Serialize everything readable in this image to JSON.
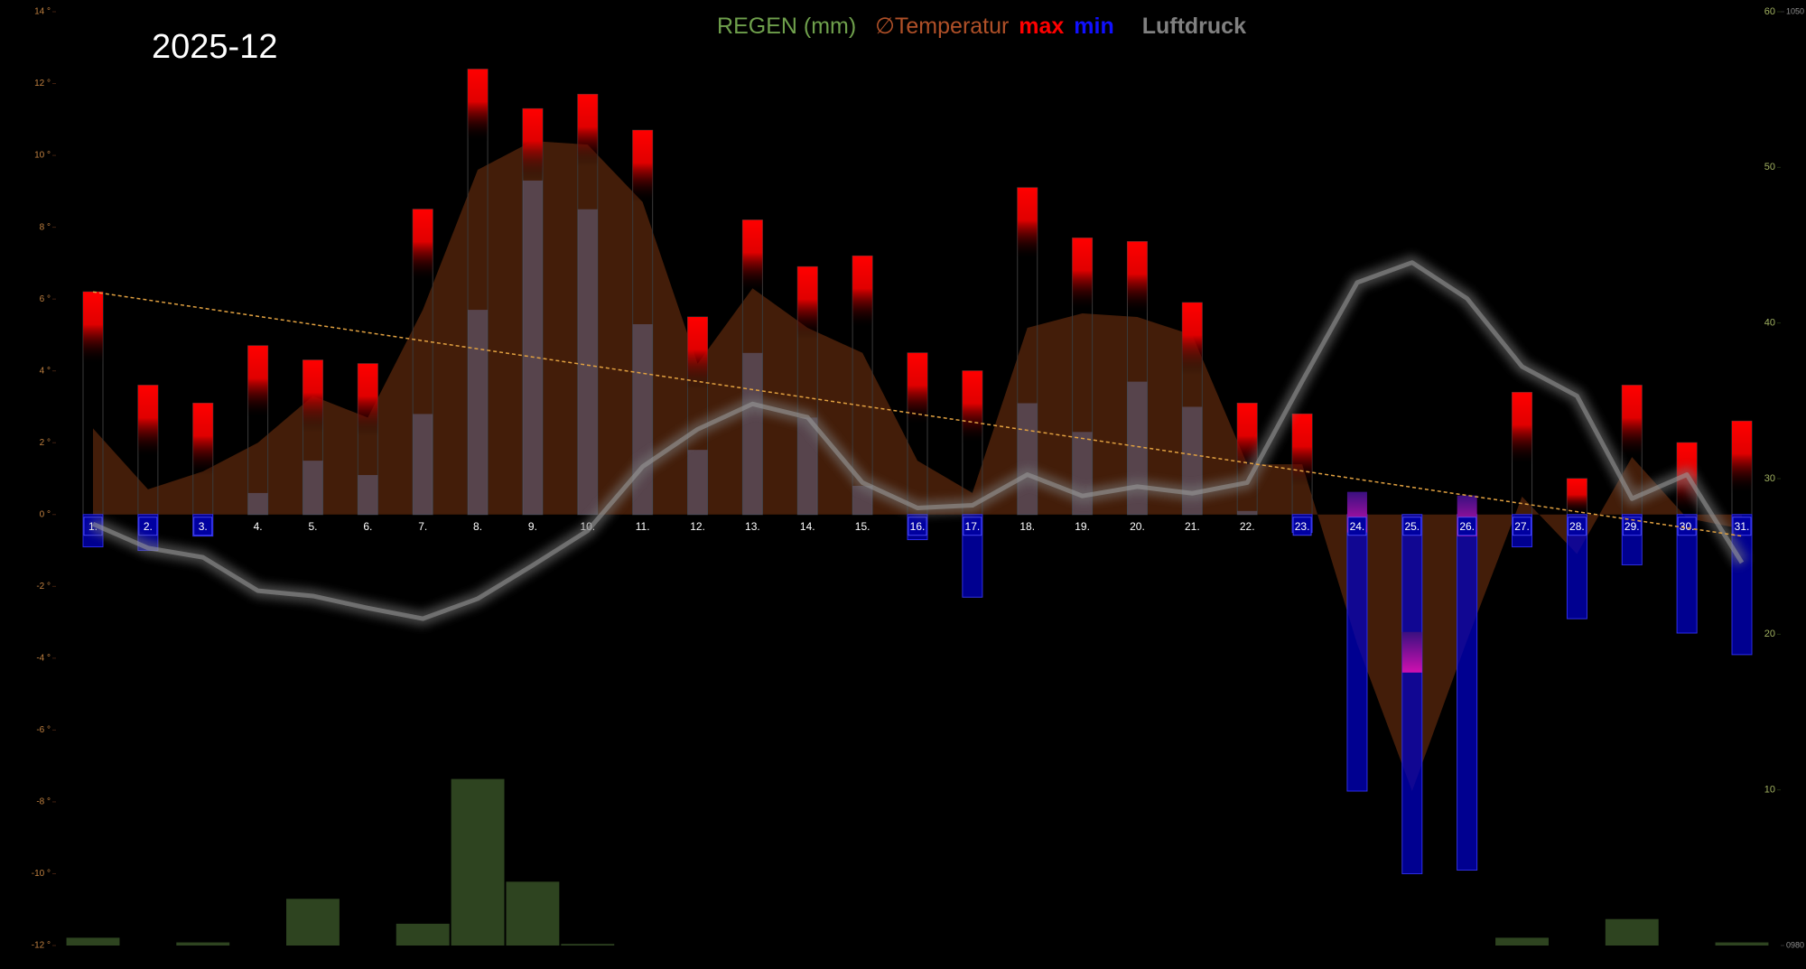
{
  "chart_data": {
    "type": "weather",
    "title": "2025-12",
    "legend": {
      "rain": "REGEN (mm)",
      "temp": "∅Temperatur",
      "max": "max",
      "min": "min",
      "pressure": "Luftdruck"
    },
    "categories": [
      "1.",
      "2.",
      "3.",
      "4.",
      "5.",
      "6.",
      "7.",
      "8.",
      "9.",
      "10.",
      "11.",
      "12.",
      "13.",
      "14.",
      "15.",
      "16.",
      "17.",
      "18.",
      "19.",
      "20.",
      "21.",
      "22.",
      "23.",
      "24.",
      "25.",
      "26.",
      "27.",
      "28.",
      "29.",
      "30.",
      "31."
    ],
    "series": [
      {
        "name": "max",
        "color": "#ff0000",
        "values": [
          6.2,
          3.6,
          3.1,
          4.7,
          4.3,
          4.2,
          8.5,
          12.4,
          11.3,
          11.7,
          10.7,
          5.5,
          8.2,
          6.9,
          7.2,
          4.5,
          4.0,
          9.1,
          7.7,
          7.6,
          5.9,
          3.1,
          2.8,
          -0.5,
          -4.4,
          -0.6,
          3.4,
          1.0,
          3.6,
          2.0,
          2.6
        ]
      },
      {
        "name": "min",
        "color": "#0000c0",
        "values": [
          -0.9,
          -1.0,
          -0.6,
          0.6,
          1.5,
          1.1,
          2.8,
          5.7,
          9.3,
          8.5,
          5.3,
          1.8,
          4.5,
          2.7,
          0.8,
          -0.7,
          -2.3,
          3.1,
          2.3,
          3.7,
          3.0,
          0.1,
          -0.5,
          -7.7,
          -10.0,
          -9.9,
          -0.9,
          -2.9,
          -1.4,
          -3.3,
          -3.9
        ]
      },
      {
        "name": "∅Temperatur",
        "color": "#7a3410",
        "values": [
          2.4,
          0.7,
          1.2,
          2.0,
          3.3,
          2.7,
          5.7,
          9.6,
          10.4,
          10.3,
          8.7,
          4.2,
          6.3,
          5.2,
          4.5,
          1.5,
          0.6,
          5.2,
          5.6,
          5.5,
          5.0,
          1.4,
          1.4,
          -3.6,
          -7.7,
          -3.5,
          0.5,
          -1.1,
          1.6,
          -0.1,
          -0.4
        ]
      },
      {
        "name": "REGEN (mm)",
        "color": "#2e4420",
        "axis": "y2",
        "values": [
          0.5,
          0,
          0.2,
          0,
          3.0,
          0,
          1.4,
          10.7,
          4.1,
          0.1,
          0,
          0,
          0,
          0,
          0,
          0,
          0,
          0,
          0,
          0,
          0,
          0,
          0,
          0,
          0,
          0,
          0.5,
          0,
          1.7,
          0,
          0.2
        ]
      },
      {
        "name": "Luftdruck",
        "color": "#777777",
        "axis": "y3",
        "values": [
          1011.6,
          1009.8,
          1009.1,
          1006.6,
          1006.2,
          1005.3,
          1004.5,
          1006.0,
          1008.5,
          1011.1,
          1015.9,
          1018.7,
          1020.6,
          1019.6,
          1014.7,
          1012.8,
          1013.0,
          1015.3,
          1013.7,
          1014.4,
          1013.9,
          1014.7,
          1022.3,
          1029.7,
          1031.2,
          1028.5,
          1023.4,
          1021.2,
          1013.5,
          1015.3,
          1008.7
        ]
      }
    ],
    "trend": [
      6.2,
      -0.6
    ],
    "ylim": [
      -12,
      14
    ],
    "yticks": [
      {
        "value": -12,
        "label": "-12 °"
      },
      {
        "value": -10,
        "label": "-10 °"
      },
      {
        "value": -8,
        "label": "-8 °"
      },
      {
        "value": -6,
        "label": "-6 °"
      },
      {
        "value": -4,
        "label": "-4 °"
      },
      {
        "value": -2,
        "label": "-2 °"
      },
      {
        "value": 0,
        "label": "0 °"
      },
      {
        "value": 2,
        "label": "2 °"
      },
      {
        "value": 4,
        "label": "4 °"
      },
      {
        "value": 6,
        "label": "6 °"
      },
      {
        "value": 8,
        "label": "8 °"
      },
      {
        "value": 10,
        "label": "10 °"
      },
      {
        "value": 12,
        "label": "12 °"
      },
      {
        "value": 14,
        "label": "14 °"
      }
    ],
    "y2lim": [
      0,
      60
    ],
    "y2ticks": [
      10,
      20,
      30,
      40,
      50,
      60
    ],
    "y3lim": [
      980,
      1050
    ],
    "y3ticks": [
      {
        "value": 980,
        "label": "0980"
      },
      1050
    ]
  }
}
